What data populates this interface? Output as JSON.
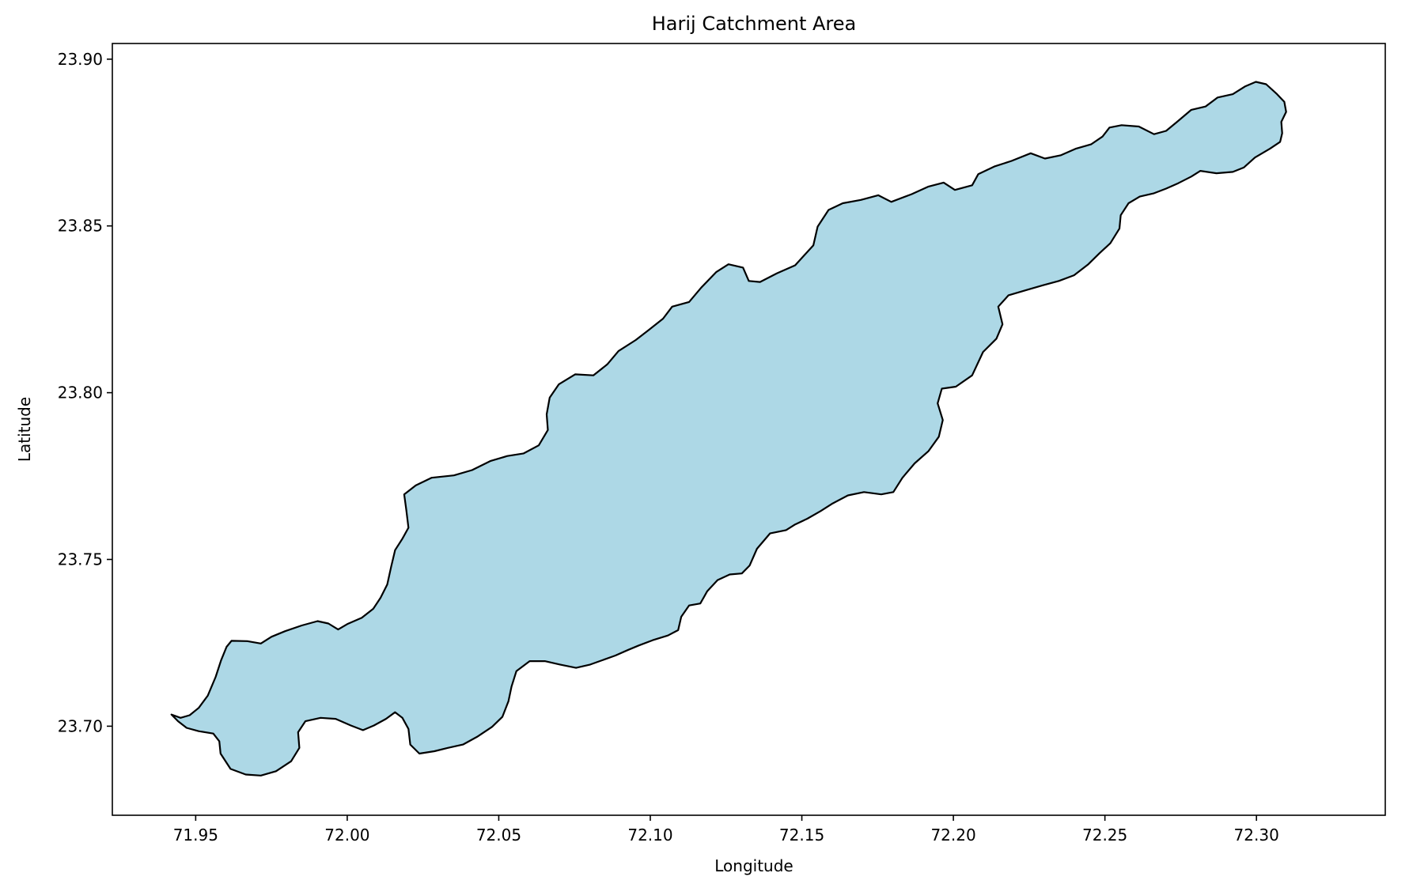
{
  "title": "Harij Catchment Area",
  "xlabel": "Longitude",
  "ylabel": "Latitude",
  "chart_data": {
    "type": "map",
    "title": "Harij Catchment Area",
    "xlabel": "Longitude",
    "ylabel": "Latitude",
    "xlim": [
      71.9225,
      72.3425
    ],
    "ylim": [
      23.6733,
      23.9047
    ],
    "xticks": [
      71.95,
      72.0,
      72.05,
      72.1,
      72.15,
      72.2,
      72.25,
      72.3
    ],
    "xtick_labels": [
      "71.95",
      "72.00",
      "72.05",
      "72.10",
      "72.15",
      "72.20",
      "72.25",
      "72.30"
    ],
    "yticks": [
      23.7,
      23.75,
      23.8,
      23.85,
      23.9
    ],
    "ytick_labels": [
      "23.70",
      "23.75",
      "23.80",
      "23.85",
      "23.90"
    ],
    "fill_color": "#add8e6",
    "edge_color": "#000000",
    "grid": false,
    "polygon": [
      [
        71.942,
        23.7035
      ],
      [
        71.945,
        23.7025
      ],
      [
        71.948,
        23.7033
      ],
      [
        71.951,
        23.7055
      ],
      [
        71.954,
        23.7092
      ],
      [
        71.9566,
        23.7148
      ],
      [
        71.9584,
        23.7198
      ],
      [
        71.9602,
        23.7238
      ],
      [
        71.9618,
        23.7256
      ],
      [
        71.967,
        23.7255
      ],
      [
        71.9715,
        23.7248
      ],
      [
        71.975,
        23.7268
      ],
      [
        71.9795,
        23.7285
      ],
      [
        71.985,
        23.7302
      ],
      [
        71.9902,
        23.7315
      ],
      [
        71.9938,
        23.7308
      ],
      [
        71.997,
        23.729
      ],
      [
        72.0,
        23.7306
      ],
      [
        72.0048,
        23.7325
      ],
      [
        72.0086,
        23.7352
      ],
      [
        72.011,
        23.7385
      ],
      [
        72.0132,
        23.7425
      ],
      [
        72.0145,
        23.7478
      ],
      [
        72.0158,
        23.7528
      ],
      [
        72.0182,
        23.7562
      ],
      [
        72.0202,
        23.7595
      ],
      [
        72.0195,
        23.7648
      ],
      [
        72.0188,
        23.7695
      ],
      [
        72.0226,
        23.7722
      ],
      [
        72.0278,
        23.7745
      ],
      [
        72.0352,
        23.7752
      ],
      [
        72.0412,
        23.7768
      ],
      [
        72.0472,
        23.7795
      ],
      [
        72.0528,
        23.781
      ],
      [
        72.0582,
        23.7818
      ],
      [
        72.0632,
        23.7842
      ],
      [
        72.0662,
        23.7888
      ],
      [
        72.0658,
        23.7935
      ],
      [
        72.0668,
        23.7985
      ],
      [
        72.0698,
        23.8025
      ],
      [
        72.0752,
        23.8055
      ],
      [
        72.0812,
        23.8052
      ],
      [
        72.0858,
        23.8085
      ],
      [
        72.0895,
        23.8125
      ],
      [
        72.0952,
        23.8158
      ],
      [
        72.0995,
        23.8188
      ],
      [
        72.1042,
        23.8222
      ],
      [
        72.1072,
        23.8258
      ],
      [
        72.1128,
        23.8272
      ],
      [
        72.1168,
        23.8315
      ],
      [
        72.1218,
        23.8362
      ],
      [
        72.1258,
        23.8385
      ],
      [
        72.1306,
        23.8375
      ],
      [
        72.1325,
        23.8335
      ],
      [
        72.1362,
        23.8332
      ],
      [
        72.1418,
        23.8358
      ],
      [
        72.1478,
        23.8382
      ],
      [
        72.1538,
        23.8442
      ],
      [
        72.1552,
        23.8498
      ],
      [
        72.1588,
        23.8548
      ],
      [
        72.1635,
        23.8568
      ],
      [
        72.1695,
        23.8578
      ],
      [
        72.1752,
        23.8592
      ],
      [
        72.1795,
        23.8572
      ],
      [
        72.1862,
        23.8595
      ],
      [
        72.1918,
        23.8618
      ],
      [
        72.1968,
        23.863
      ],
      [
        72.2005,
        23.8608
      ],
      [
        72.2062,
        23.8622
      ],
      [
        72.2082,
        23.8655
      ],
      [
        72.2135,
        23.8678
      ],
      [
        72.2192,
        23.8695
      ],
      [
        72.2255,
        23.8718
      ],
      [
        72.2302,
        23.8702
      ],
      [
        72.2355,
        23.8712
      ],
      [
        72.2405,
        23.8732
      ],
      [
        72.2455,
        23.8745
      ],
      [
        72.2492,
        23.8768
      ],
      [
        72.2515,
        23.8795
      ],
      [
        72.2555,
        23.8802
      ],
      [
        72.2612,
        23.8798
      ],
      [
        72.2662,
        23.8775
      ],
      [
        72.2702,
        23.8785
      ],
      [
        72.2738,
        23.8812
      ],
      [
        72.2785,
        23.8848
      ],
      [
        72.2832,
        23.8858
      ],
      [
        72.2872,
        23.8885
      ],
      [
        72.2922,
        23.8895
      ],
      [
        72.2962,
        23.8918
      ],
      [
        72.2998,
        23.8932
      ],
      [
        72.3032,
        23.8925
      ],
      [
        72.3068,
        23.8895
      ],
      [
        72.3092,
        23.8872
      ],
      [
        72.3098,
        23.8842
      ],
      [
        72.3082,
        23.8812
      ],
      [
        72.3085,
        23.8778
      ],
      [
        72.3078,
        23.8752
      ],
      [
        72.3045,
        23.8732
      ],
      [
        72.2995,
        23.8705
      ],
      [
        72.2958,
        23.8675
      ],
      [
        72.2922,
        23.8662
      ],
      [
        72.2868,
        23.8658
      ],
      [
        72.2815,
        23.8665
      ],
      [
        72.2785,
        23.8648
      ],
      [
        72.2742,
        23.8628
      ],
      [
        72.2702,
        23.8612
      ],
      [
        72.2662,
        23.8598
      ],
      [
        72.2615,
        23.8588
      ],
      [
        72.2578,
        23.8568
      ],
      [
        72.2552,
        23.8532
      ],
      [
        72.2548,
        23.8492
      ],
      [
        72.2518,
        23.8448
      ],
      [
        72.2482,
        23.8418
      ],
      [
        72.2445,
        23.8385
      ],
      [
        72.2398,
        23.8352
      ],
      [
        72.2348,
        23.8335
      ],
      [
        72.2295,
        23.8322
      ],
      [
        72.2242,
        23.8308
      ],
      [
        72.2182,
        23.8292
      ],
      [
        72.2148,
        23.8258
      ],
      [
        72.2162,
        23.8205
      ],
      [
        72.2142,
        23.8162
      ],
      [
        72.2098,
        23.8122
      ],
      [
        72.2062,
        23.8052
      ],
      [
        72.2008,
        23.8018
      ],
      [
        72.1962,
        23.8012
      ],
      [
        72.1948,
        23.7968
      ],
      [
        72.1965,
        23.7918
      ],
      [
        72.1952,
        23.7868
      ],
      [
        72.1918,
        23.7825
      ],
      [
        72.1872,
        23.7788
      ],
      [
        72.1832,
        23.7745
      ],
      [
        72.1802,
        23.7702
      ],
      [
        72.1762,
        23.7695
      ],
      [
        72.1705,
        23.7702
      ],
      [
        72.1652,
        23.7692
      ],
      [
        72.1602,
        23.7668
      ],
      [
        72.1562,
        23.7645
      ],
      [
        72.1518,
        23.7622
      ],
      [
        72.1478,
        23.7605
      ],
      [
        72.1448,
        23.7588
      ],
      [
        72.1395,
        23.7578
      ],
      [
        72.1352,
        23.7532
      ],
      [
        72.1328,
        23.7482
      ],
      [
        72.1302,
        23.7458
      ],
      [
        72.1262,
        23.7455
      ],
      [
        72.1222,
        23.7438
      ],
      [
        72.1188,
        23.7405
      ],
      [
        72.1165,
        23.7368
      ],
      [
        72.1128,
        23.7362
      ],
      [
        72.1102,
        23.7328
      ],
      [
        72.1092,
        23.7288
      ],
      [
        72.1058,
        23.7272
      ],
      [
        72.1008,
        23.7258
      ],
      [
        72.0962,
        23.7242
      ],
      [
        72.0925,
        23.7228
      ],
      [
        72.0885,
        23.7212
      ],
      [
        72.0842,
        23.7198
      ],
      [
        72.0802,
        23.7185
      ],
      [
        72.0755,
        23.7175
      ],
      [
        72.0702,
        23.7185
      ],
      [
        72.0652,
        23.7195
      ],
      [
        72.0602,
        23.7195
      ],
      [
        72.0558,
        23.7165
      ],
      [
        72.0542,
        23.7118
      ],
      [
        72.0532,
        23.7075
      ],
      [
        72.0512,
        23.7028
      ],
      [
        72.0478,
        23.6998
      ],
      [
        72.0428,
        23.6968
      ],
      [
        72.0382,
        23.6945
      ],
      [
        72.0332,
        23.6935
      ],
      [
        72.0288,
        23.6925
      ],
      [
        72.0238,
        23.6918
      ],
      [
        72.0208,
        23.6945
      ],
      [
        72.0202,
        23.6992
      ],
      [
        72.0182,
        23.7025
      ],
      [
        72.0158,
        23.7042
      ],
      [
        72.0128,
        23.7022
      ],
      [
        72.0088,
        23.7002
      ],
      [
        72.0052,
        23.6988
      ],
      [
        72.0012,
        23.7002
      ],
      [
        71.9962,
        23.7022
      ],
      [
        71.9912,
        23.7025
      ],
      [
        71.9862,
        23.7015
      ],
      [
        71.9838,
        23.6982
      ],
      [
        71.9842,
        23.6935
      ],
      [
        71.9815,
        23.6895
      ],
      [
        71.9765,
        23.6865
      ],
      [
        71.9715,
        23.6852
      ],
      [
        71.9665,
        23.6855
      ],
      [
        71.9615,
        23.6872
      ],
      [
        71.9582,
        23.6918
      ],
      [
        71.9578,
        23.6955
      ],
      [
        71.9558,
        23.6978
      ],
      [
        71.951,
        23.6985
      ],
      [
        71.947,
        23.6995
      ],
      [
        71.9442,
        23.7015
      ]
    ]
  }
}
